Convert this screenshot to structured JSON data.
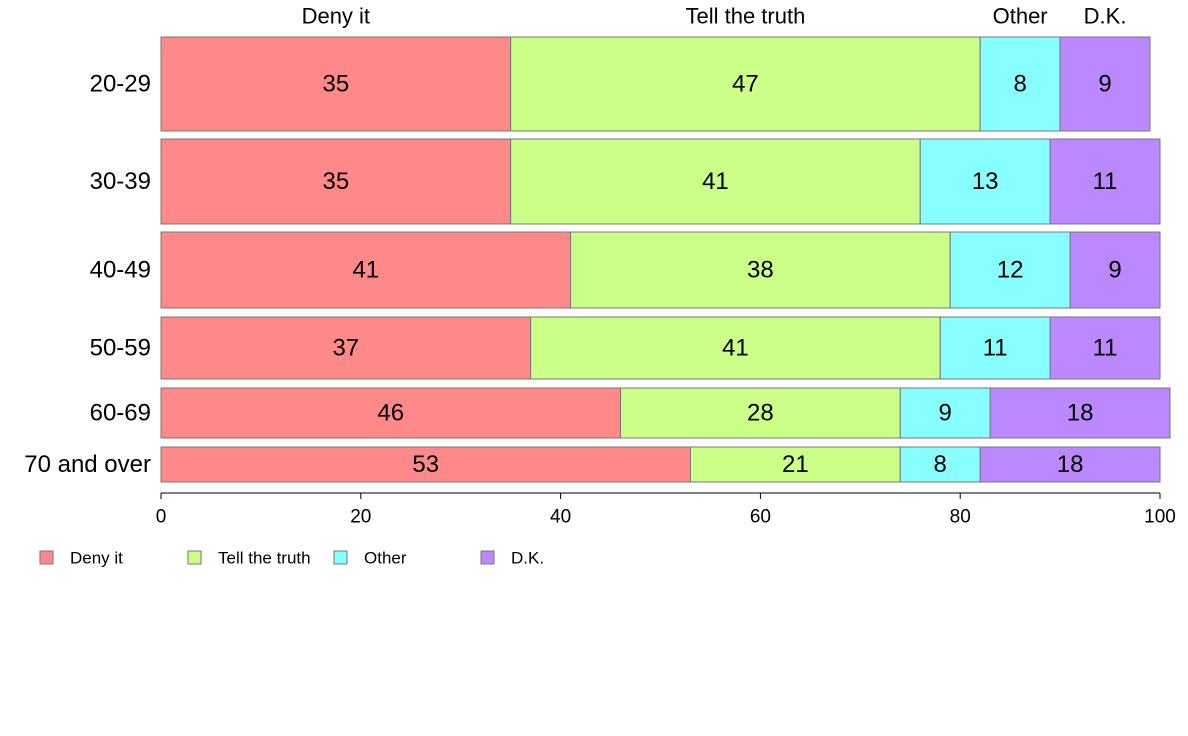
{
  "chart_data": {
    "type": "bar",
    "orientation": "horizontal",
    "stacked": true,
    "categories": [
      "20-29",
      "30-39",
      "40-49",
      "50-59",
      "60-69",
      "70 and over"
    ],
    "series": [
      {
        "name": "Deny it",
        "color": "#ff8888",
        "values": [
          35,
          35,
          41,
          37,
          46,
          53
        ]
      },
      {
        "name": "Tell the truth",
        "color": "#ccff88",
        "values": [
          47,
          41,
          38,
          41,
          28,
          21
        ]
      },
      {
        "name": "Other",
        "color": "#88ffff",
        "values": [
          8,
          13,
          12,
          11,
          9,
          8
        ]
      },
      {
        "name": "D.K.",
        "color": "#bb88ff",
        "values": [
          9,
          11,
          9,
          11,
          18,
          18
        ]
      }
    ],
    "xlim": [
      0,
      100
    ],
    "xticks": [
      0,
      20,
      40,
      60,
      80,
      100
    ],
    "top_labels": [
      "Deny it",
      "Tell the truth",
      "Other",
      "D.K."
    ],
    "legend": {
      "position": "bottom-left",
      "entries": [
        "Deny it",
        "Tell the truth",
        "Other",
        "D.K."
      ]
    },
    "grid": false,
    "title": "",
    "xlabel": "",
    "ylabel": ""
  }
}
